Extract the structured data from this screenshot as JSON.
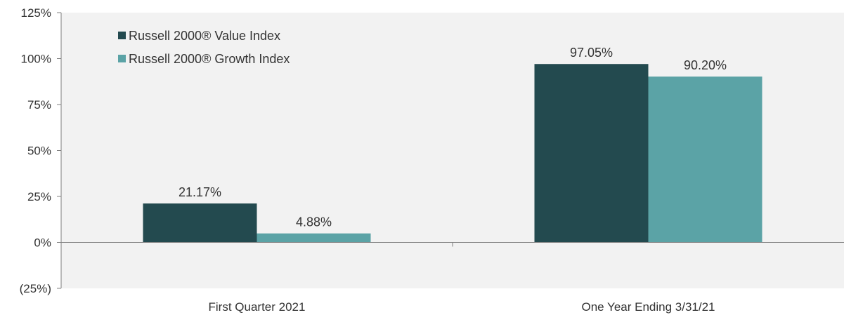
{
  "chart_data": {
    "type": "bar",
    "title": "",
    "xlabel": "",
    "ylabel": "",
    "categories": [
      "First Quarter 2021",
      "One Year Ending 3/31/21"
    ],
    "series": [
      {
        "name": "Russell 2000® Value Index",
        "values": [
          21.17,
          97.05
        ],
        "labels": [
          "21.17%",
          "97.05%"
        ],
        "color": "#234a4f"
      },
      {
        "name": "Russell 2000® Growth Index",
        "values": [
          4.88,
          90.2
        ],
        "labels": [
          "4.88%",
          "90.20%"
        ],
        "color": "#5ba3a6"
      }
    ],
    "ylim": [
      -25,
      125
    ],
    "yticks": [
      -25,
      0,
      25,
      50,
      75,
      100,
      125
    ],
    "ytick_labels": [
      "(25%)",
      "0%",
      "25%",
      "50%",
      "75%",
      "100%",
      "125%"
    ],
    "grid": false,
    "plot_background": "#f2f2f2",
    "legend_position": "top-left"
  }
}
